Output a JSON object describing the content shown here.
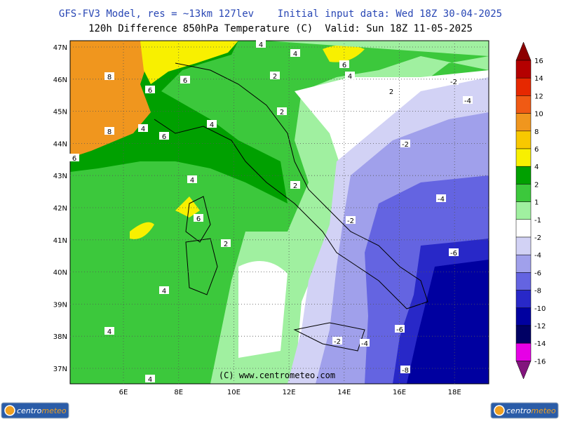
{
  "header": {
    "line1": "GFS-FV3 Model, res = ~13km 127lev    Initial input data: Wed 18Z 30-04-2025",
    "line2": "120h Difference 850hPa Temperature (C)  Valid: Sun 18Z 11-05-2025"
  },
  "map": {
    "lat_labels": [
      "47N",
      "46N",
      "45N",
      "44N",
      "43N",
      "42N",
      "41N",
      "40N",
      "39N",
      "38N",
      "37N"
    ],
    "lon_labels": [
      "6E",
      "8E",
      "10E",
      "12E",
      "14E",
      "16E",
      "18E"
    ],
    "contour_labels": [
      "4",
      "4",
      "6",
      "4",
      "8",
      "6",
      "6",
      "2",
      "2",
      "-2",
      "-4",
      "2",
      "4",
      "4",
      "8",
      "6",
      "-2",
      "6",
      "4",
      "2",
      "-4",
      "6",
      "-2",
      "2",
      "-6",
      "4",
      "-6",
      "4",
      "-2",
      "-4",
      "-8",
      "4"
    ],
    "watermark": "(C)  www.centrometeo.com"
  },
  "colorbar": {
    "labels": [
      "16",
      "14",
      "12",
      "10",
      "8",
      "6",
      "4",
      "2",
      "1",
      "-1",
      "-2",
      "-4",
      "-6",
      "-8",
      "-10",
      "-12",
      "-14",
      "-16"
    ],
    "colors": [
      "#8c0000",
      "#b40000",
      "#e62800",
      "#f05a14",
      "#f0961e",
      "#f8c800",
      "#f8f000",
      "#00a000",
      "#3cc83c",
      "#a0f0a0",
      "#ffffff",
      "#d2d2f5",
      "#a0a0eb",
      "#6464e1",
      "#2828c8",
      "#0000a0",
      "#000064",
      "#e600e6",
      "#f064f0",
      "#82147d"
    ]
  },
  "logos": {
    "left": {
      "brand": "centro",
      "accent": "meteo"
    },
    "right": {
      "brand": "centro",
      "accent": "meteo"
    }
  }
}
